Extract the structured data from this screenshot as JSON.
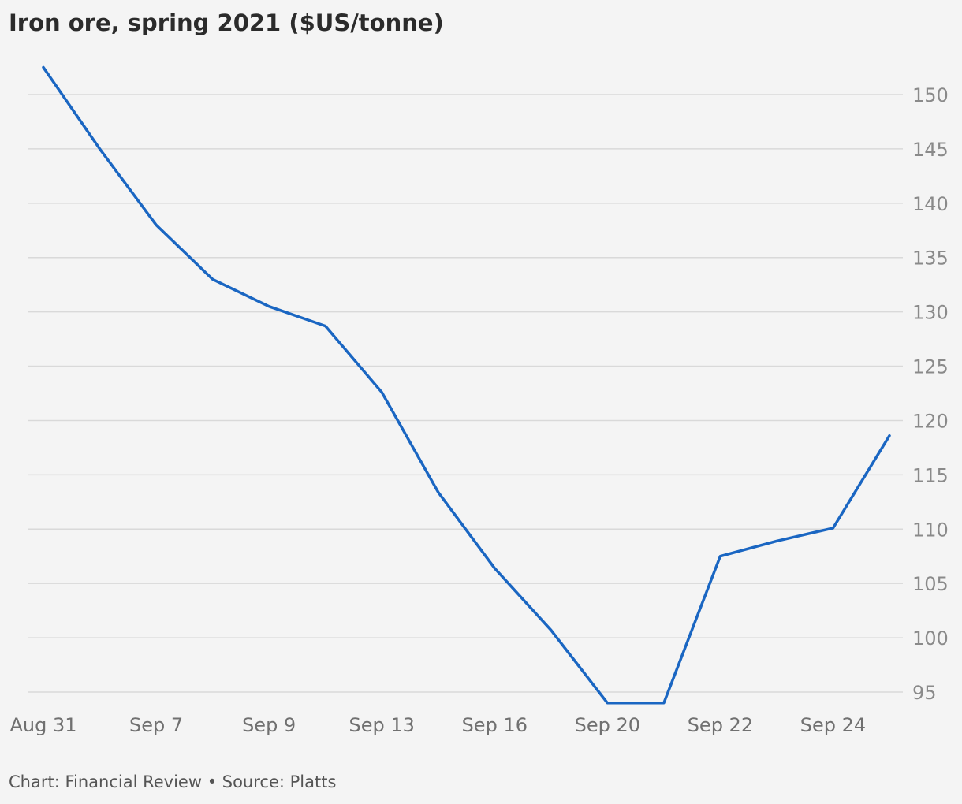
{
  "chart_data": {
    "type": "line",
    "title": "Iron ore, spring 2021 ($US/tonne)",
    "footer": "Chart: Financial Review • Source: Platts",
    "xlabel": "",
    "ylabel": "",
    "ylim": [
      93.5,
      153
    ],
    "grid": true,
    "y_ticks": [
      95,
      100,
      105,
      110,
      115,
      120,
      125,
      130,
      135,
      140,
      145,
      150
    ],
    "x_tick_labels": [
      "Aug 31",
      "Sep 7",
      "Sep 9",
      "Sep 13",
      "Sep 16",
      "Sep 20",
      "Sep 22",
      "Sep 24"
    ],
    "x_tick_indices": [
      0,
      2,
      4,
      6,
      8,
      10,
      12,
      14
    ],
    "series": [
      {
        "color": "#1a66c2",
        "values": [
          152.5,
          145,
          138,
          133,
          130.5,
          128.7,
          122.6,
          113.4,
          106.4,
          100.7,
          94,
          94,
          107.5,
          108.9,
          110.1,
          118.6
        ]
      }
    ]
  }
}
